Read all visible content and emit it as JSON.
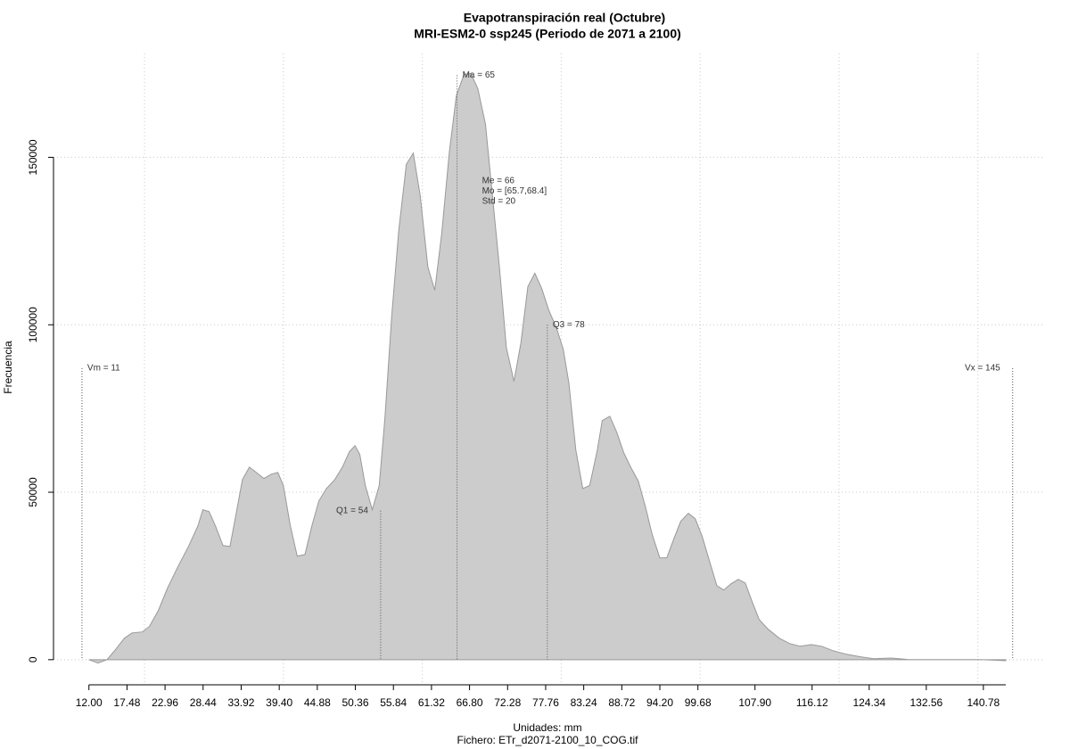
{
  "chart_data": {
    "type": "area",
    "title": "Evapotranspiración real (Octubre)",
    "subtitle": "MRI-ESM2-0 ssp245 (Periodo de 2071 a 2100)",
    "xlabel": "Unidades: mm",
    "xlabel2": "Fichero: ETr_d2071-2100_10_COG.tif",
    "ylabel": "Frecuencia",
    "color": "#cccccc",
    "line_color": "#999999",
    "grid": true,
    "xlim": [
      6.9,
      149.4
    ],
    "ylim": [
      -7500,
      181000
    ],
    "xticks": [
      {
        "value": 12,
        "label": "12.00"
      },
      17.48,
      22.96,
      28.44,
      33.92,
      {
        "value": 39.4,
        "label": "39.40"
      },
      44.88,
      50.36,
      55.84,
      61.32,
      {
        "value": 66.8,
        "label": "66.80"
      },
      72.28,
      77.76,
      83.24,
      88.72,
      {
        "value": 94.2,
        "label": "94.20"
      },
      99.68,
      {
        "value": 107.9,
        "label": "107.90"
      },
      116.12,
      124.34,
      132.56,
      140.78
    ],
    "yticks": [
      0,
      50000,
      100000,
      150000
    ],
    "xgrid": [
      20,
      40,
      60,
      80,
      100,
      120,
      140
    ],
    "x": [
      12,
      13.3,
      14.6,
      15.9,
      17.1,
      18.2,
      19.7,
      20.7,
      22.0,
      23.3,
      24.8,
      26.4,
      27.7,
      28.4,
      29.3,
      30.2,
      31.3,
      32.3,
      33.1,
      34.1,
      35.1,
      36.1,
      37.2,
      38.3,
      39.2,
      40.0,
      41.0,
      42.0,
      43.1,
      44.1,
      45.1,
      46.2,
      47.4,
      48.5,
      49.5,
      50.3,
      51.0,
      51.8,
      52.8,
      53.8,
      54.6,
      55.6,
      56.6,
      57.7,
      58.7,
      59.7,
      60.8,
      61.8,
      62.8,
      63.9,
      64.9,
      66.0,
      67.0,
      68.0,
      69.1,
      70.1,
      71.1,
      72.1,
      73.2,
      74.2,
      75.2,
      76.2,
      77.2,
      78.2,
      79.3,
      80.3,
      81.1,
      82.1,
      83.1,
      84.1,
      85.2,
      85.9,
      87.0,
      88.0,
      89.0,
      90.0,
      91.1,
      92.1,
      93.1,
      94.2,
      95.2,
      96.2,
      97.2,
      98.3,
      99.3,
      100.3,
      101.3,
      102.4,
      103.4,
      104.4,
      105.5,
      106.5,
      107.5,
      108.5,
      109.8,
      111.4,
      112.9,
      114.4,
      116.0,
      117.5,
      119.1,
      121.1,
      123.2,
      125.0,
      127.5,
      130.1,
      135.2,
      140.4,
      144.0
    ],
    "values": [
      0,
      -1000,
      0,
      3200,
      6400,
      8000,
      8300,
      9900,
      14700,
      21300,
      27700,
      34100,
      40000,
      44800,
      44200,
      40000,
      34100,
      33800,
      42600,
      53800,
      57500,
      55900,
      54100,
      55400,
      55900,
      52000,
      40000,
      30900,
      31400,
      40000,
      47400,
      51100,
      53800,
      57500,
      62100,
      63900,
      61300,
      52000,
      44800,
      52000,
      71900,
      102600,
      127900,
      147900,
      151300,
      138500,
      117200,
      110300,
      127300,
      151800,
      168400,
      174800,
      175000,
      170500,
      159800,
      138500,
      117200,
      93200,
      83100,
      94600,
      111400,
      115400,
      110800,
      104400,
      99100,
      92700,
      82600,
      62600,
      51100,
      52000,
      62600,
      71400,
      72700,
      67900,
      61800,
      57500,
      53300,
      45800,
      37300,
      30400,
      30400,
      36000,
      41300,
      43700,
      42100,
      36800,
      29800,
      22100,
      20800,
      22600,
      24000,
      22900,
      17300,
      12000,
      9100,
      6400,
      4800,
      4000,
      4500,
      4000,
      2700,
      1600,
      800,
      300,
      500,
      0,
      0,
      0,
      -300
    ],
    "markers": [
      {
        "label": "Vm = 11",
        "x": 11,
        "height": 87000,
        "side": "right"
      },
      {
        "label": "Q1 = 54",
        "x": 54,
        "height": 44500,
        "side": "left"
      },
      {
        "label": "Ma = 65",
        "x": 65,
        "height": 174500,
        "side": "right"
      },
      {
        "label": "Q3 = 78",
        "x": 78,
        "height": 100000,
        "side": "right"
      },
      {
        "label": "Vx = 145",
        "x": 145,
        "height": 87000,
        "side": "left"
      }
    ],
    "stats": [
      "Me = 66",
      "Mo = [65.7,68.4]",
      "Std = 20"
    ]
  }
}
